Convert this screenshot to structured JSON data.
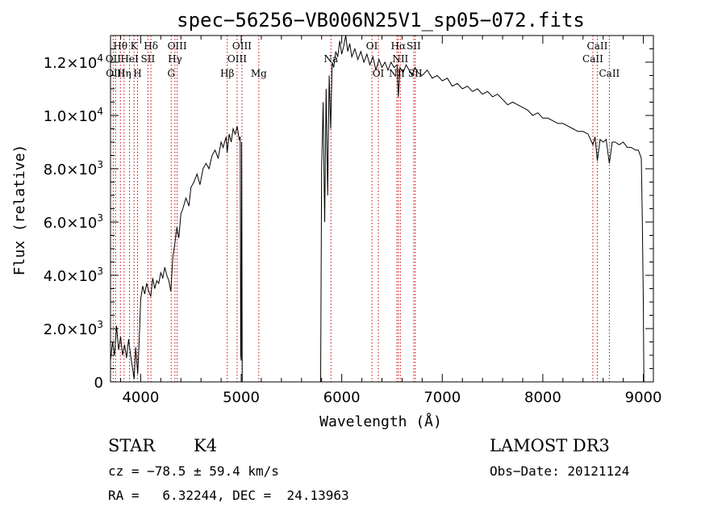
{
  "chart_data": {
    "type": "line",
    "title": "spec−56256−VB006N25V1_sp05−072.fits",
    "xlabel": "Wavelength (Å)",
    "ylabel": "Flux (relative)",
    "xlim": [
      3700,
      9100
    ],
    "ylim": [
      0,
      13000
    ],
    "x_ticks": [
      {
        "value": 4000,
        "label": "4000"
      },
      {
        "value": 5000,
        "label": "5000"
      },
      {
        "value": 6000,
        "label": "6000"
      },
      {
        "value": 7000,
        "label": "7000"
      },
      {
        "value": 8000,
        "label": "8000"
      },
      {
        "value": 9000,
        "label": "9000"
      }
    ],
    "y_ticks": [
      {
        "value": 0,
        "mantissa": "0",
        "exp": ""
      },
      {
        "value": 2000,
        "mantissa": "2.0×10",
        "exp": "3"
      },
      {
        "value": 4000,
        "mantissa": "4.0×10",
        "exp": "3"
      },
      {
        "value": 6000,
        "mantissa": "6.0×10",
        "exp": "3"
      },
      {
        "value": 8000,
        "mantissa": "8.0×10",
        "exp": "3"
      },
      {
        "value": 10000,
        "mantissa": "1.0×10",
        "exp": "4"
      },
      {
        "value": 12000,
        "mantissa": "1.2×10",
        "exp": "4"
      }
    ],
    "spectrum": [
      [
        3700,
        800
      ],
      [
        3720,
        1500
      ],
      [
        3740,
        1000
      ],
      [
        3760,
        2100
      ],
      [
        3780,
        1200
      ],
      [
        3800,
        1700
      ],
      [
        3820,
        1000
      ],
      [
        3840,
        1400
      ],
      [
        3860,
        900
      ],
      [
        3880,
        1600
      ],
      [
        3900,
        1000
      ],
      [
        3920,
        500
      ],
      [
        3935,
        100
      ],
      [
        3950,
        1300
      ],
      [
        3970,
        300
      ],
      [
        3985,
        1500
      ],
      [
        4000,
        3100
      ],
      [
        4020,
        3600
      ],
      [
        4040,
        3300
      ],
      [
        4060,
        3700
      ],
      [
        4080,
        3400
      ],
      [
        4100,
        3200
      ],
      [
        4120,
        3900
      ],
      [
        4140,
        3500
      ],
      [
        4160,
        3800
      ],
      [
        4180,
        3700
      ],
      [
        4200,
        4100
      ],
      [
        4220,
        3900
      ],
      [
        4240,
        4300
      ],
      [
        4260,
        4000
      ],
      [
        4280,
        3800
      ],
      [
        4300,
        3400
      ],
      [
        4320,
        4700
      ],
      [
        4340,
        5200
      ],
      [
        4360,
        5800
      ],
      [
        4380,
        5400
      ],
      [
        4400,
        6300
      ],
      [
        4420,
        6500
      ],
      [
        4450,
        6900
      ],
      [
        4480,
        6600
      ],
      [
        4500,
        7300
      ],
      [
        4530,
        7500
      ],
      [
        4560,
        7800
      ],
      [
        4590,
        7400
      ],
      [
        4620,
        8000
      ],
      [
        4650,
        8200
      ],
      [
        4680,
        8000
      ],
      [
        4710,
        8500
      ],
      [
        4740,
        8700
      ],
      [
        4770,
        8400
      ],
      [
        4800,
        9000
      ],
      [
        4820,
        8800
      ],
      [
        4850,
        9200
      ],
      [
        4860,
        8600
      ],
      [
        4880,
        9300
      ],
      [
        4900,
        9000
      ],
      [
        4920,
        9500
      ],
      [
        4940,
        9300
      ],
      [
        4960,
        9600
      ],
      [
        4980,
        9100
      ],
      [
        4990,
        9200
      ],
      [
        4995,
        1000
      ],
      [
        5000,
        800
      ],
      [
        5005,
        9000
      ],
      [
        5010,
        0
      ],
      [
        5790,
        0
      ],
      [
        5800,
        8000
      ],
      [
        5815,
        10500
      ],
      [
        5830,
        6000
      ],
      [
        5845,
        11000
      ],
      [
        5860,
        7000
      ],
      [
        5875,
        11500
      ],
      [
        5890,
        9500
      ],
      [
        5905,
        12000
      ],
      [
        5920,
        11800
      ],
      [
        5940,
        12400
      ],
      [
        5960,
        12200
      ],
      [
        5980,
        12800
      ],
      [
        6000,
        12300
      ],
      [
        6020,
        12600
      ],
      [
        6040,
        13000
      ],
      [
        6060,
        12400
      ],
      [
        6080,
        12700
      ],
      [
        6100,
        12200
      ],
      [
        6130,
        12500
      ],
      [
        6160,
        12100
      ],
      [
        6190,
        12400
      ],
      [
        6220,
        12000
      ],
      [
        6250,
        12300
      ],
      [
        6280,
        11900
      ],
      [
        6310,
        12200
      ],
      [
        6340,
        11700
      ],
      [
        6370,
        12100
      ],
      [
        6400,
        11800
      ],
      [
        6430,
        12000
      ],
      [
        6460,
        11700
      ],
      [
        6490,
        12000
      ],
      [
        6520,
        11800
      ],
      [
        6550,
        11900
      ],
      [
        6563,
        10700
      ],
      [
        6580,
        11800
      ],
      [
        6610,
        11600
      ],
      [
        6640,
        11900
      ],
      [
        6670,
        11700
      ],
      [
        6700,
        11500
      ],
      [
        6730,
        11800
      ],
      [
        6760,
        11600
      ],
      [
        6800,
        11500
      ],
      [
        6850,
        11700
      ],
      [
        6900,
        11400
      ],
      [
        6950,
        11500
      ],
      [
        7000,
        11300
      ],
      [
        7050,
        11400
      ],
      [
        7100,
        11100
      ],
      [
        7150,
        11200
      ],
      [
        7200,
        11000
      ],
      [
        7250,
        11100
      ],
      [
        7300,
        10900
      ],
      [
        7350,
        11000
      ],
      [
        7400,
        10800
      ],
      [
        7450,
        10900
      ],
      [
        7500,
        10700
      ],
      [
        7550,
        10800
      ],
      [
        7600,
        10600
      ],
      [
        7650,
        10400
      ],
      [
        7700,
        10500
      ],
      [
        7750,
        10400
      ],
      [
        7800,
        10300
      ],
      [
        7850,
        10200
      ],
      [
        7900,
        10000
      ],
      [
        7950,
        10100
      ],
      [
        8000,
        9900
      ],
      [
        8050,
        9900
      ],
      [
        8100,
        9800
      ],
      [
        8150,
        9700
      ],
      [
        8200,
        9700
      ],
      [
        8250,
        9600
      ],
      [
        8300,
        9500
      ],
      [
        8350,
        9400
      ],
      [
        8400,
        9400
      ],
      [
        8450,
        9300
      ],
      [
        8498,
        8900
      ],
      [
        8520,
        9200
      ],
      [
        8542,
        8300
      ],
      [
        8570,
        9100
      ],
      [
        8600,
        9000
      ],
      [
        8630,
        9100
      ],
      [
        8662,
        8200
      ],
      [
        8690,
        9000
      ],
      [
        8720,
        9000
      ],
      [
        8760,
        8900
      ],
      [
        8800,
        9000
      ],
      [
        8840,
        8800
      ],
      [
        8880,
        8800
      ],
      [
        8920,
        8700
      ],
      [
        8950,
        8700
      ],
      [
        8980,
        8400
      ],
      [
        8990,
        6000
      ],
      [
        9000,
        3000
      ],
      [
        9005,
        0
      ]
    ],
    "lines": [
      {
        "label": "Hθ",
        "x": 3798,
        "row": 0
      },
      {
        "label": "OII",
        "x": 3727,
        "row": 1
      },
      {
        "label": "OIII",
        "x": 3750,
        "row": 2
      },
      {
        "label": "K",
        "x": 3934,
        "row": 0
      },
      {
        "label": "HeI",
        "x": 3889,
        "row": 1
      },
      {
        "label": "Hη",
        "x": 3835,
        "row": 2
      },
      {
        "label": "H",
        "x": 3969,
        "row": 2
      },
      {
        "label": "Hδ",
        "x": 4102,
        "row": 0
      },
      {
        "label": "SII",
        "x": 4072,
        "row": 1
      },
      {
        "label": "OIII",
        "x": 4363,
        "row": 0
      },
      {
        "label": "Hγ",
        "x": 4341,
        "row": 1
      },
      {
        "label": "G",
        "x": 4304,
        "row": 2
      },
      {
        "label": "OIII",
        "x": 5007,
        "row": 0
      },
      {
        "label": "OIII",
        "x": 4959,
        "row": 1
      },
      {
        "label": "Hβ",
        "x": 4861,
        "row": 2
      },
      {
        "label": "Mg",
        "x": 5175,
        "row": 2
      },
      {
        "label": "Na",
        "x": 5893,
        "row": 1
      },
      {
        "label": "OI",
        "x": 6300,
        "row": 0
      },
      {
        "label": "OI",
        "x": 6364,
        "row": 2
      },
      {
        "label": "Hα",
        "x": 6563,
        "row": 0
      },
      {
        "label": "SII",
        "x": 6716,
        "row": 0
      },
      {
        "label": "NII",
        "x": 6583,
        "row": 1
      },
      {
        "label": "NII",
        "x": 6548,
        "row": 2
      },
      {
        "label": "SII",
        "x": 6731,
        "row": 2
      },
      {
        "label": "CaII",
        "x": 8542,
        "row": 0
      },
      {
        "label": "CaII",
        "x": 8498,
        "row": 1
      },
      {
        "label": "CaII",
        "x": 8662,
        "row": 2
      }
    ]
  },
  "info": {
    "class": "STAR",
    "subclass": "K4",
    "survey": "LAMOST DR3",
    "cz": "cz = −78.5 ± 59.4 km/s",
    "obs_date": "Obs−Date: 20121124",
    "coords": "RA =   6.32244, DEC =  24.13963"
  }
}
